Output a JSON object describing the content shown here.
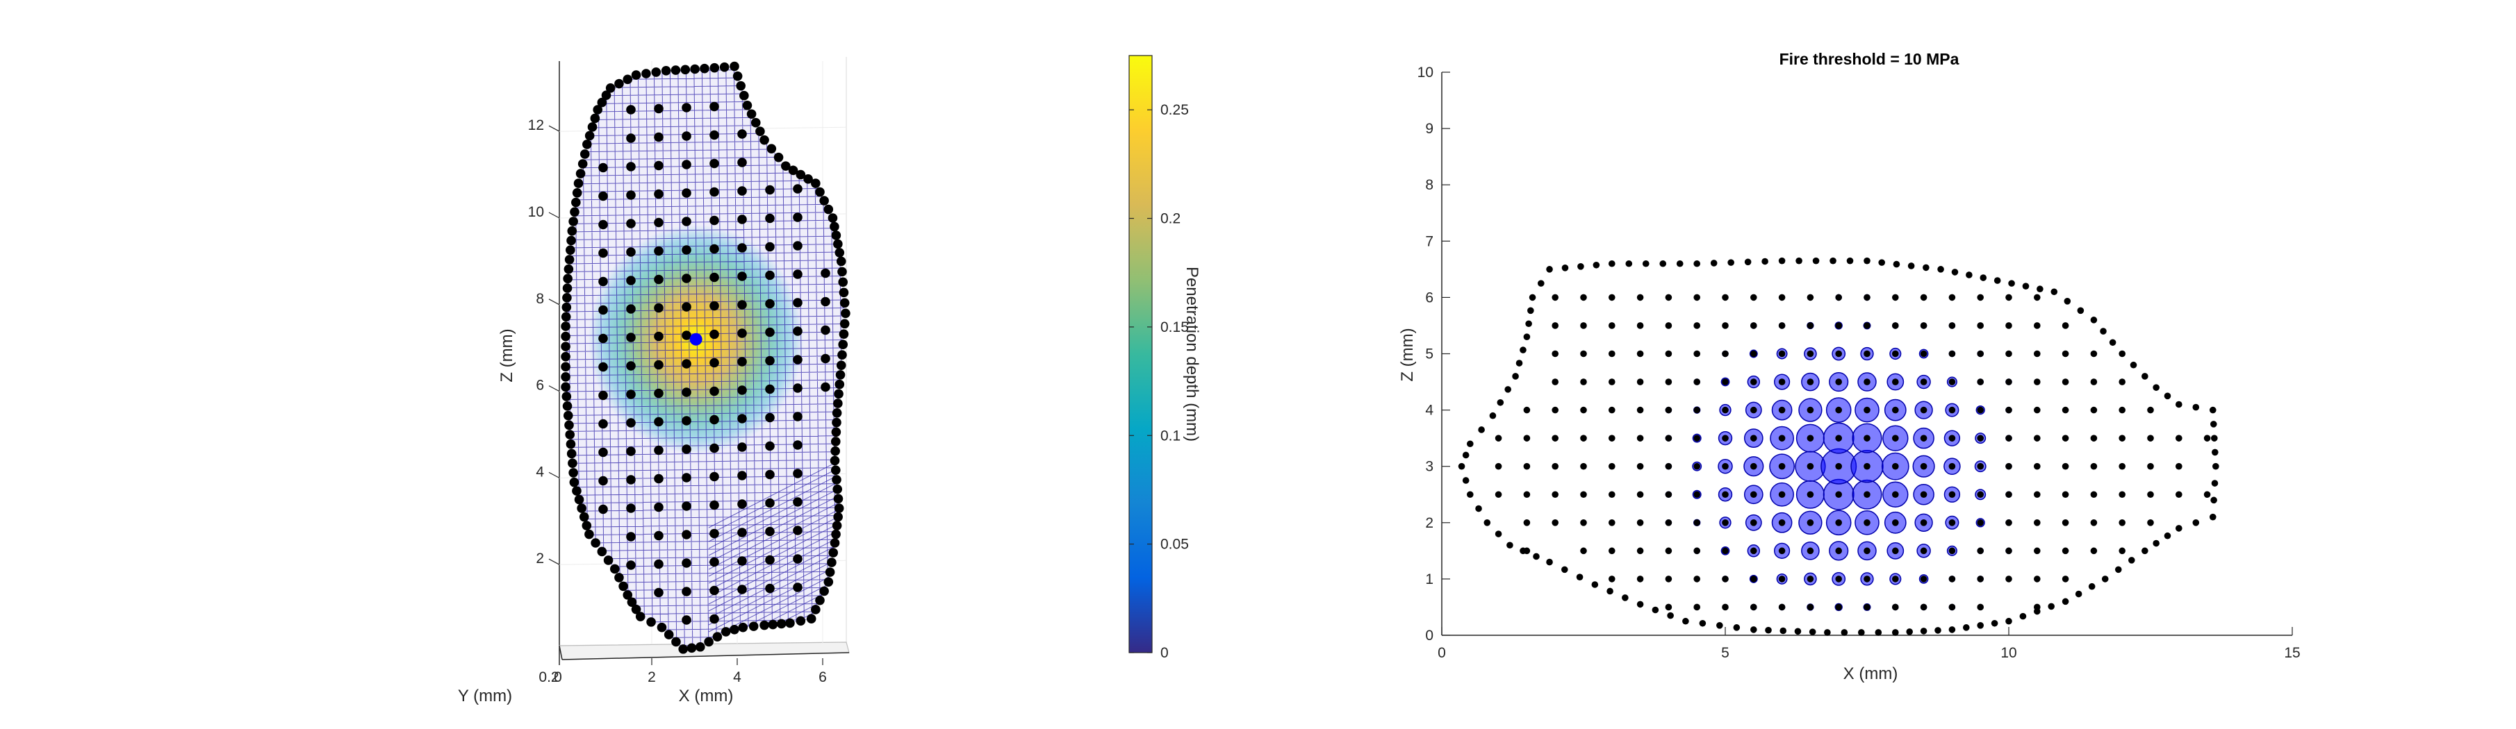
{
  "figure": {
    "left_panel": {
      "zlabel": "Z (mm)",
      "xlabel": "X (mm)",
      "ylabel": "Y (mm)",
      "z_ticks": [
        "2",
        "4",
        "6",
        "8",
        "10",
        "12"
      ],
      "x_ticks": [
        "2",
        "4",
        "6"
      ],
      "y_ticks": [
        "0.2",
        "0"
      ]
    },
    "colorbar": {
      "label": "Penetration depth (mm)",
      "ticks": [
        "0",
        "0.05",
        "0.1",
        "0.15",
        "0.2",
        "0.25"
      ],
      "range": [
        0,
        0.275
      ],
      "colormap": "parula",
      "colors": [
        "#352a87",
        "#0363e1",
        "#1485d4",
        "#06a7c6",
        "#38b99e",
        "#92bf73",
        "#d9ba56",
        "#fcce2e",
        "#f9fb0e"
      ]
    },
    "right_panel": {
      "title": "Fire threshold = 10 MPa",
      "xlabel": "X (mm)",
      "ylabel": "Z (mm)",
      "x_ticks": [
        "0",
        "5",
        "10",
        "15"
      ],
      "y_ticks": [
        "0",
        "1",
        "2",
        "3",
        "4",
        "5",
        "6",
        "7",
        "8",
        "9",
        "10"
      ],
      "marker_color": "#0000ff"
    }
  },
  "chart_data": [
    {
      "type": "scatter",
      "title": "",
      "xlabel": "X (mm)",
      "ylabel": "Z (mm)",
      "zlabel": "Y (mm)",
      "view": "3D surface mesh of sensor nodes colored by penetration depth",
      "xlim": [
        0,
        7
      ],
      "zlim": [
        0,
        13.5
      ],
      "indent_center": {
        "x": 3.1,
        "z": 7.2
      },
      "max_penetration_depth": 0.275,
      "colorbar_label": "Penetration depth (mm)"
    },
    {
      "type": "scatter",
      "title": "Fire threshold = 10 MPa",
      "xlabel": "X (mm)",
      "ylabel": "Z (mm)",
      "xlim": [
        0,
        15
      ],
      "ylim": [
        0,
        10
      ],
      "fired_center": {
        "x": 7.1,
        "z": 3.0
      },
      "grid": false
    }
  ]
}
